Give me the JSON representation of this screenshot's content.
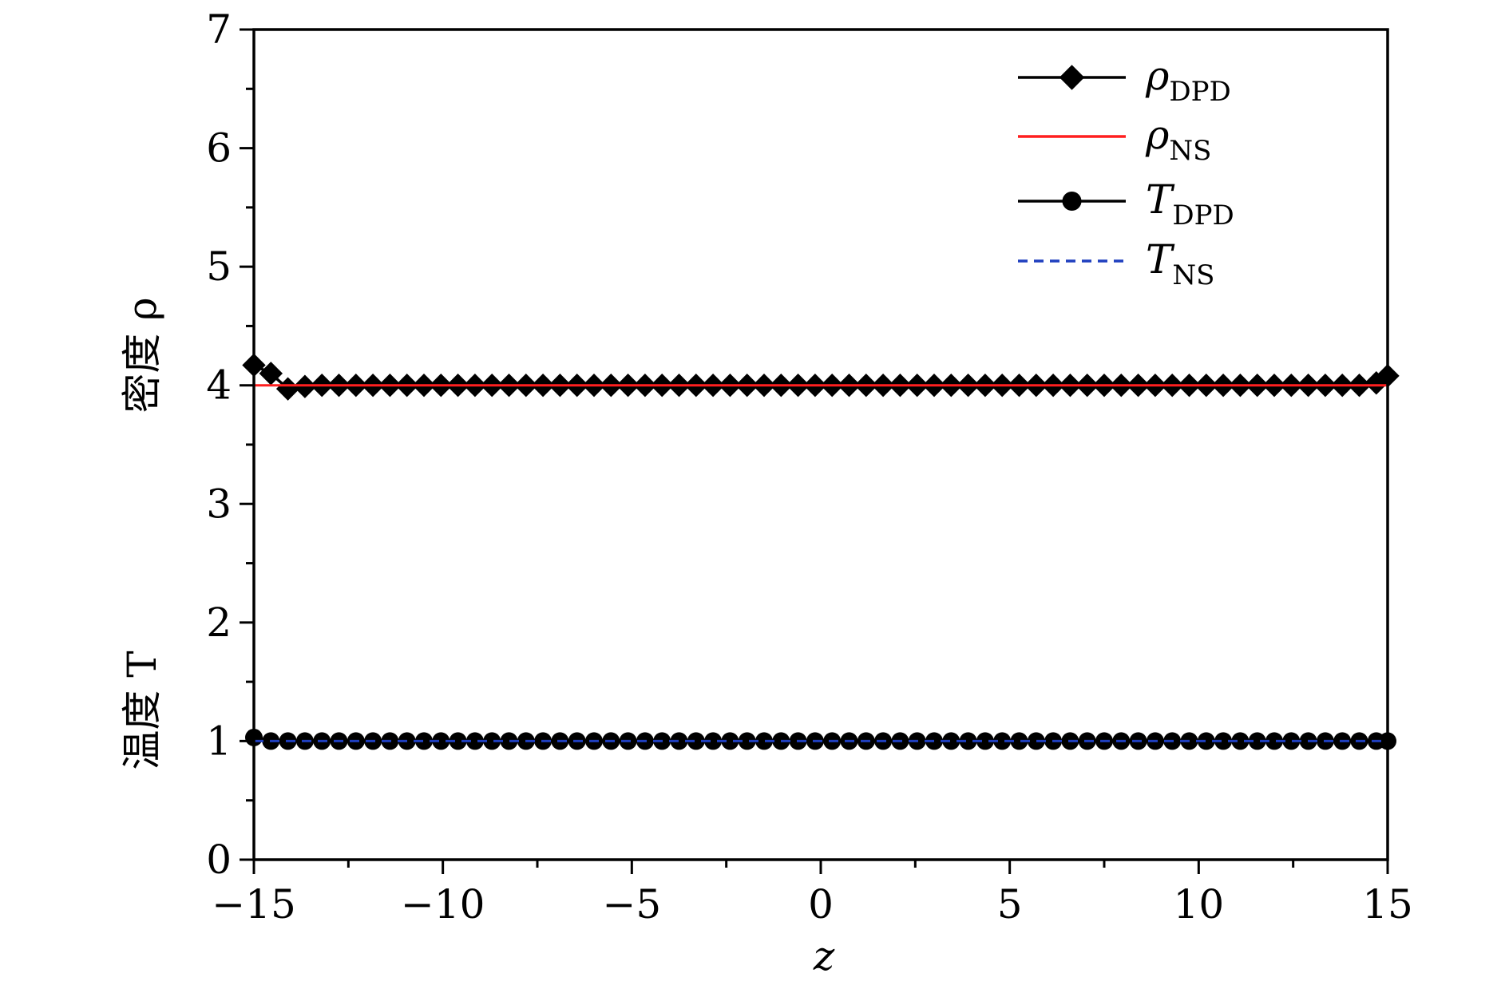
{
  "chart_data": {
    "type": "line",
    "xlabel": "z",
    "ylabel_density": "密度 ρ",
    "ylabel_temperature": "温度 T",
    "xlim": [
      -15,
      15
    ],
    "ylim": [
      0,
      7
    ],
    "x_ticks": [
      -15,
      -10,
      -5,
      0,
      5,
      10,
      15
    ],
    "x_tick_labels": [
      "−15",
      "−10",
      "−5",
      "0",
      "5",
      "10",
      "15"
    ],
    "y_ticks": [
      0,
      1,
      2,
      3,
      4,
      5,
      6,
      7
    ],
    "y_tick_labels": [
      "0",
      "1",
      "2",
      "3",
      "4",
      "5",
      "6",
      "7"
    ],
    "x_minor_step": 2.5,
    "y_minor_step": 0.5,
    "grid": false,
    "legend_position": "top-right",
    "series": [
      {
        "name": "ρ_DPD",
        "name_main": "ρ",
        "name_sub": "DPD",
        "color": "#000000",
        "line": "solid",
        "marker": "diamond",
        "x": [
          -15.0,
          -14.55,
          -14.1,
          -13.65,
          -13.2,
          -12.75,
          -12.3,
          -11.85,
          -11.4,
          -10.95,
          -10.5,
          -10.05,
          -9.6,
          -9.15,
          -8.7,
          -8.25,
          -7.8,
          -7.35,
          -6.9,
          -6.45,
          -6.0,
          -5.55,
          -5.1,
          -4.65,
          -4.2,
          -3.75,
          -3.3,
          -2.85,
          -2.4,
          -1.95,
          -1.5,
          -1.05,
          -0.6,
          -0.15,
          0.3,
          0.75,
          1.2,
          1.65,
          2.1,
          2.55,
          3.0,
          3.45,
          3.9,
          4.35,
          4.8,
          5.25,
          5.7,
          6.15,
          6.6,
          7.05,
          7.5,
          7.95,
          8.4,
          8.85,
          9.3,
          9.75,
          10.2,
          10.65,
          11.1,
          11.55,
          12.0,
          12.45,
          12.9,
          13.35,
          13.8,
          14.25,
          14.7,
          15.0
        ],
        "y": [
          4.17,
          4.1,
          3.97,
          3.99,
          4.0,
          4.0,
          4.0,
          4.0,
          4.0,
          4.0,
          4.0,
          4.0,
          4.0,
          4.0,
          4.0,
          4.0,
          4.0,
          4.0,
          4.0,
          4.0,
          4.0,
          4.0,
          4.0,
          4.0,
          4.0,
          4.0,
          4.0,
          4.0,
          4.0,
          4.0,
          4.0,
          4.0,
          4.0,
          4.0,
          4.0,
          4.0,
          4.0,
          4.0,
          4.0,
          4.0,
          4.0,
          4.0,
          4.0,
          4.0,
          4.0,
          4.0,
          4.0,
          4.0,
          4.0,
          4.0,
          4.0,
          4.0,
          4.0,
          4.0,
          4.0,
          4.0,
          4.0,
          4.0,
          4.0,
          4.0,
          4.0,
          4.0,
          4.0,
          4.0,
          4.0,
          4.0,
          4.02,
          4.08
        ]
      },
      {
        "name": "ρ_NS",
        "name_main": "ρ",
        "name_sub": "NS",
        "color": "#ff1f1f",
        "line": "solid",
        "marker": "none",
        "x": [
          -15,
          15
        ],
        "y": [
          4.0,
          4.0
        ]
      },
      {
        "name": "T_DPD",
        "name_main": "T",
        "name_sub": "DPD",
        "color": "#000000",
        "line": "solid",
        "marker": "circle",
        "x": [
          -15.0,
          -14.55,
          -14.1,
          -13.65,
          -13.2,
          -12.75,
          -12.3,
          -11.85,
          -11.4,
          -10.95,
          -10.5,
          -10.05,
          -9.6,
          -9.15,
          -8.7,
          -8.25,
          -7.8,
          -7.35,
          -6.9,
          -6.45,
          -6.0,
          -5.55,
          -5.1,
          -4.65,
          -4.2,
          -3.75,
          -3.3,
          -2.85,
          -2.4,
          -1.95,
          -1.5,
          -1.05,
          -0.6,
          -0.15,
          0.3,
          0.75,
          1.2,
          1.65,
          2.1,
          2.55,
          3.0,
          3.45,
          3.9,
          4.35,
          4.8,
          5.25,
          5.7,
          6.15,
          6.6,
          7.05,
          7.5,
          7.95,
          8.4,
          8.85,
          9.3,
          9.75,
          10.2,
          10.65,
          11.1,
          11.55,
          12.0,
          12.45,
          12.9,
          13.35,
          13.8,
          14.25,
          14.7,
          15.0
        ],
        "y": [
          1.03,
          1.0,
          1.0,
          1.0,
          1.0,
          1.0,
          1.0,
          1.0,
          1.0,
          1.0,
          1.0,
          1.0,
          1.0,
          1.0,
          1.0,
          1.0,
          1.0,
          1.0,
          1.0,
          1.0,
          1.0,
          1.0,
          1.0,
          1.0,
          1.0,
          1.0,
          1.0,
          1.0,
          1.0,
          1.0,
          1.0,
          1.0,
          1.0,
          1.0,
          1.0,
          1.0,
          1.0,
          1.0,
          1.0,
          1.0,
          1.0,
          1.0,
          1.0,
          1.0,
          1.0,
          1.0,
          1.0,
          1.0,
          1.0,
          1.0,
          1.0,
          1.0,
          1.0,
          1.0,
          1.0,
          1.0,
          1.0,
          1.0,
          1.0,
          1.0,
          1.0,
          1.0,
          1.0,
          1.0,
          1.0,
          1.0,
          1.0,
          1.0
        ]
      },
      {
        "name": "T_NS",
        "name_main": "T",
        "name_sub": "NS",
        "color": "#1f3fbf",
        "line": "dashed",
        "marker": "none",
        "x": [
          -15,
          15
        ],
        "y": [
          1.0,
          1.0
        ]
      }
    ]
  }
}
